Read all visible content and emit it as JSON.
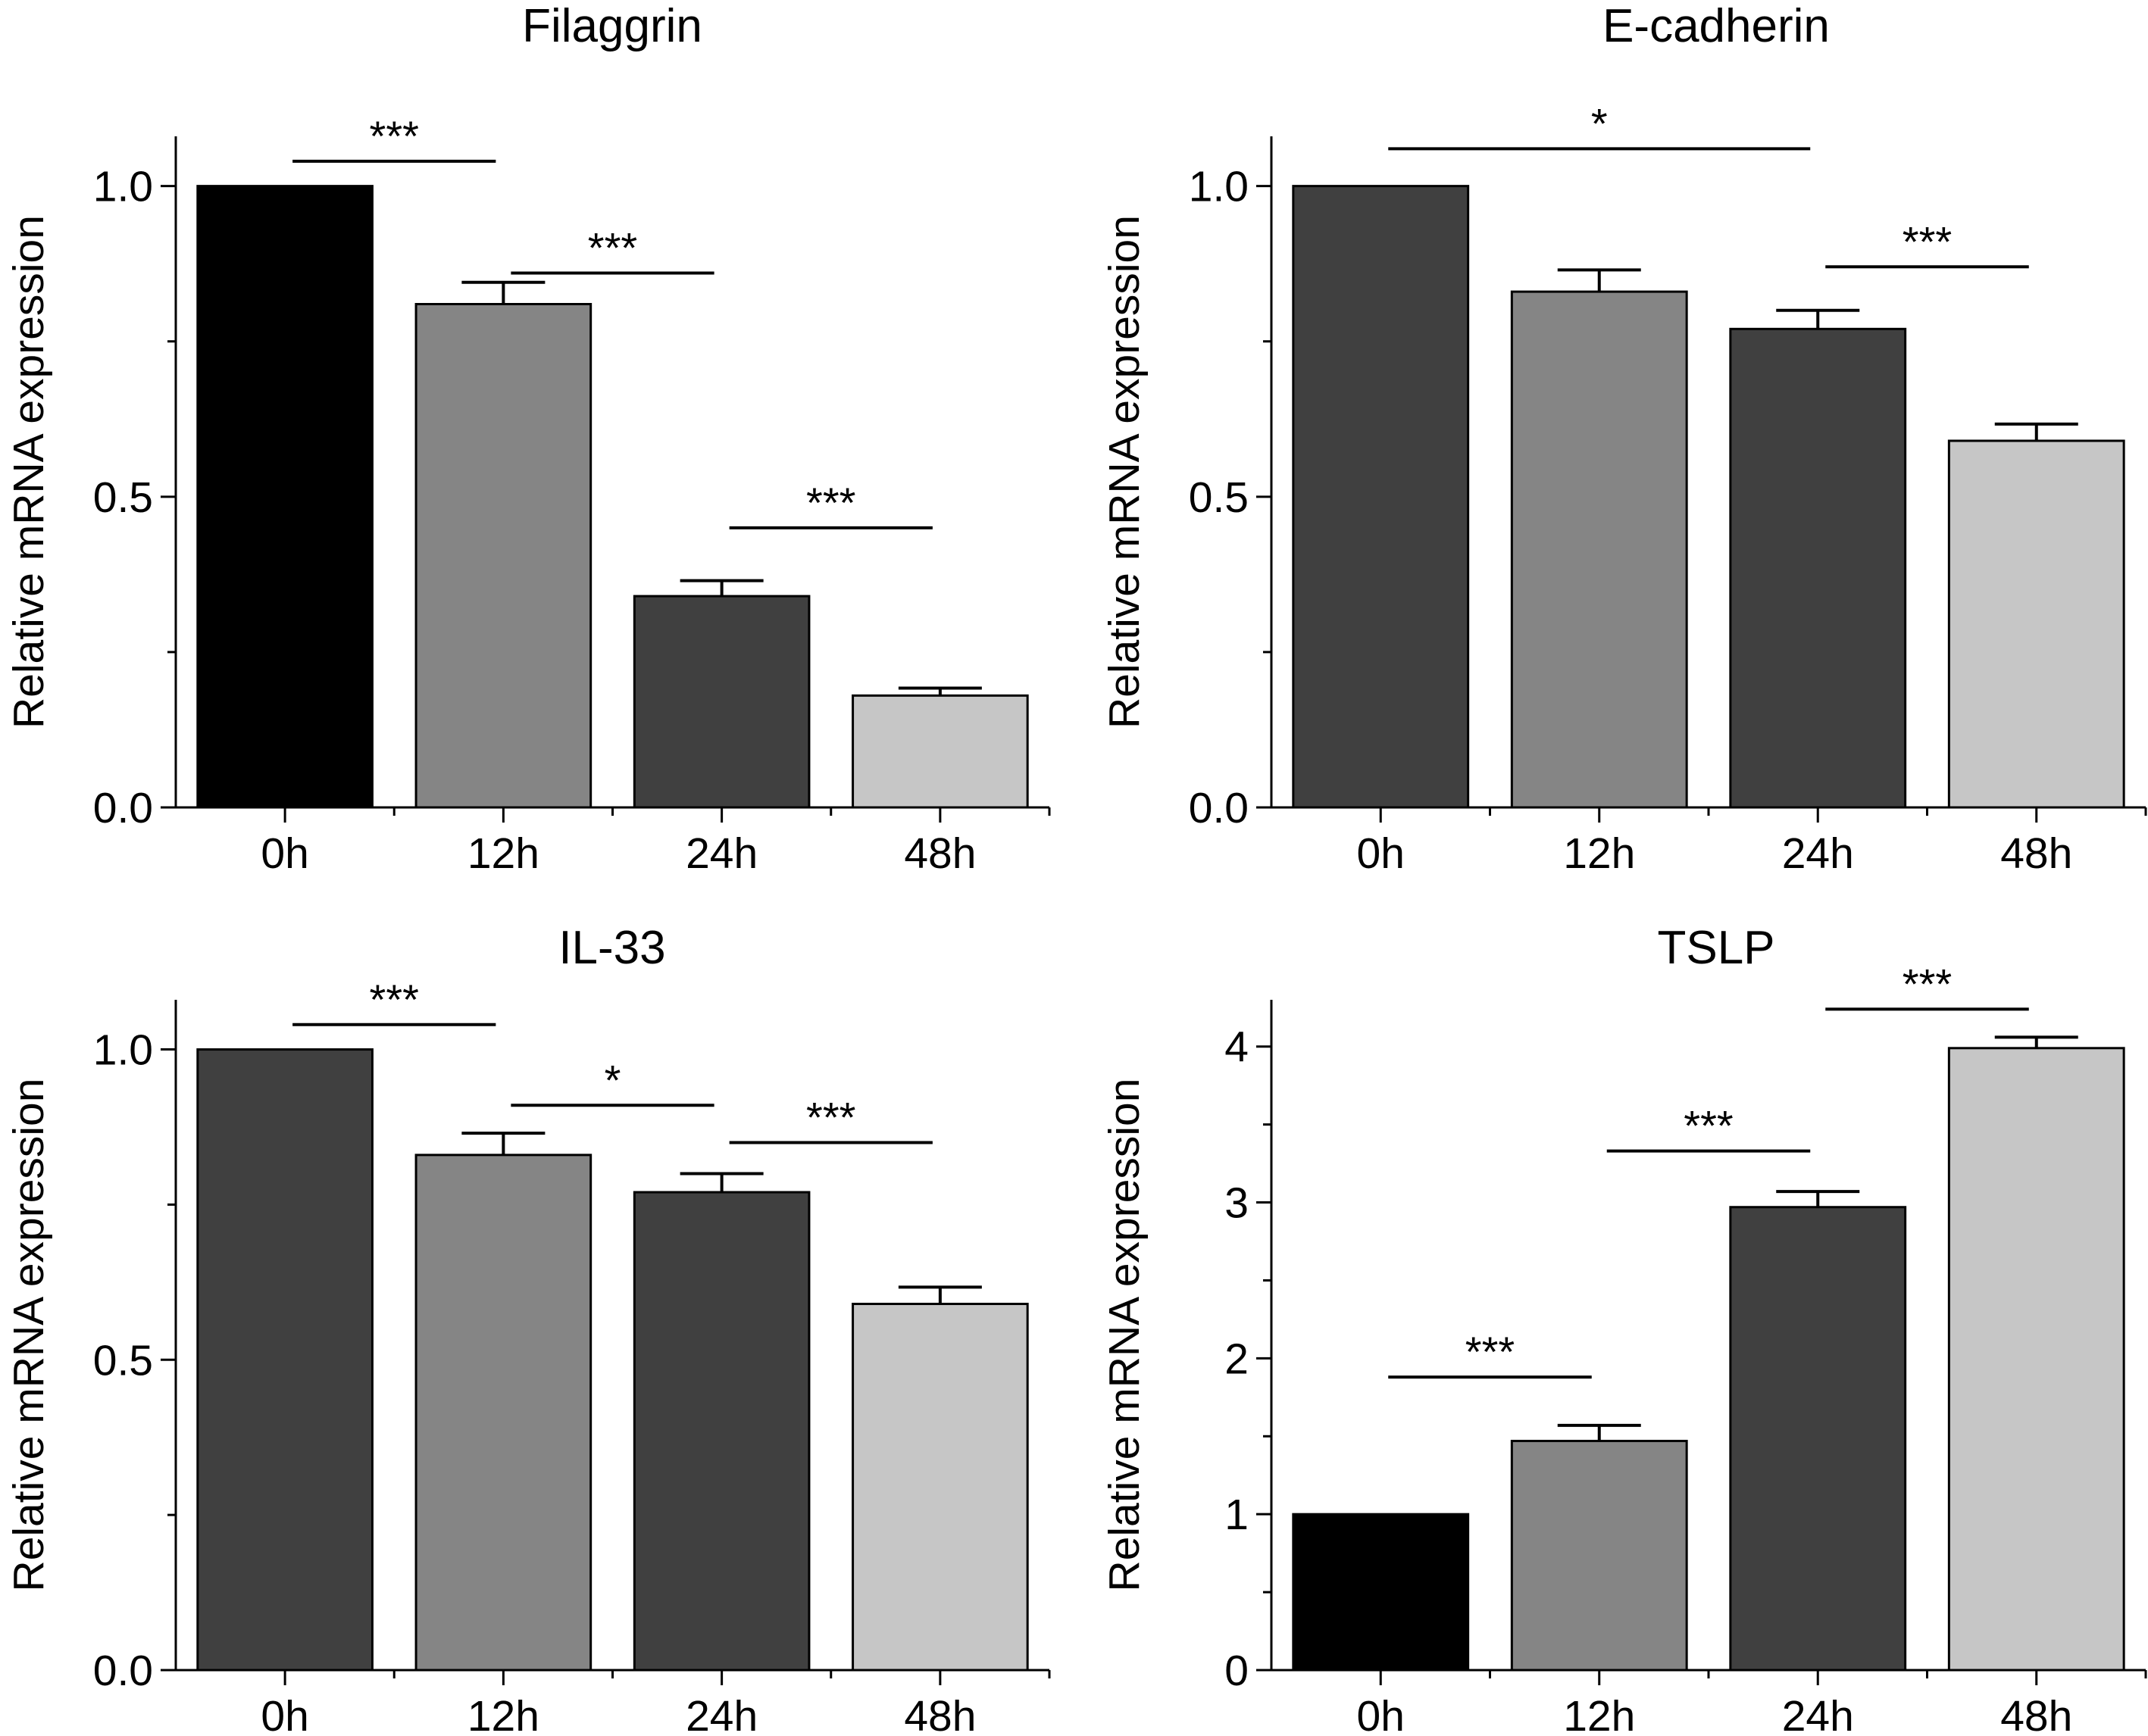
{
  "chart_data": [
    {
      "type": "bar",
      "title": "Filaggrin",
      "ylabel": "Relative mRNA expression",
      "xlabel": "",
      "categories": [
        "0h",
        "12h",
        "24h",
        "48h"
      ],
      "values": [
        1.0,
        0.81,
        0.34,
        0.18
      ],
      "errors": [
        0,
        0.035,
        0.025,
        0.012
      ],
      "colors": [
        "#000000",
        "#858585",
        "#404040",
        "#c6c6c6"
      ],
      "ylim": [
        0,
        1.08
      ],
      "yticks": [
        0.0,
        0.5,
        1.0
      ],
      "ytick_labels": [
        "0.0",
        "0.5",
        "1.0"
      ],
      "minor_ticks": [
        0.25,
        0.75
      ],
      "significance": [
        {
          "from": 0,
          "to": 1,
          "y": 1.04,
          "label": "***"
        },
        {
          "from": 1,
          "to": 2,
          "y": 0.86,
          "label": "***"
        },
        {
          "from": 2,
          "to": 3,
          "y": 0.45,
          "label": "***"
        }
      ]
    },
    {
      "type": "bar",
      "title": "E-cadherin",
      "ylabel": "Relative mRNA expression",
      "xlabel": "",
      "categories": [
        "0h",
        "12h",
        "24h",
        "48h"
      ],
      "values": [
        1.0,
        0.83,
        0.77,
        0.59
      ],
      "errors": [
        0,
        0.035,
        0.03,
        0.027
      ],
      "colors": [
        "#404040",
        "#858585",
        "#404040",
        "#c6c6c6"
      ],
      "ylim": [
        0,
        1.08
      ],
      "yticks": [
        0.0,
        0.5,
        1.0
      ],
      "ytick_labels": [
        "0.0",
        "0.5",
        "1.0"
      ],
      "minor_ticks": [
        0.25,
        0.75
      ],
      "significance": [
        {
          "from": 0,
          "to": 2,
          "y": 1.06,
          "label": "*"
        },
        {
          "from": 2,
          "to": 3,
          "y": 0.87,
          "label": "***"
        }
      ]
    },
    {
      "type": "bar",
      "title": "IL-33",
      "ylabel": "Relative mRNA expression",
      "xlabel": "",
      "categories": [
        "0h",
        "12h",
        "24h",
        "48h"
      ],
      "values": [
        1.0,
        0.83,
        0.77,
        0.59
      ],
      "errors": [
        0,
        0.035,
        0.03,
        0.027
      ],
      "colors": [
        "#404040",
        "#858585",
        "#404040",
        "#c6c6c6"
      ],
      "ylim": [
        0,
        1.08
      ],
      "yticks": [
        0.0,
        0.5,
        1.0
      ],
      "ytick_labels": [
        "0.0",
        "0.5",
        "1.0"
      ],
      "minor_ticks": [
        0.25,
        0.75
      ],
      "significance": [
        {
          "from": 0,
          "to": 1,
          "y": 1.04,
          "label": "***"
        },
        {
          "from": 1,
          "to": 2,
          "y": 0.91,
          "label": "*"
        },
        {
          "from": 2,
          "to": 3,
          "y": 0.85,
          "label": "***"
        }
      ]
    },
    {
      "type": "bar",
      "title": "TSLP",
      "ylabel": "Relative mRNA expression",
      "xlabel": "",
      "categories": [
        "0h",
        "12h",
        "24h",
        "48h"
      ],
      "values": [
        1.0,
        1.47,
        2.97,
        3.99
      ],
      "errors": [
        0,
        0.1,
        0.1,
        0.07
      ],
      "colors": [
        "#000000",
        "#858585",
        "#404040",
        "#c6c6c6"
      ],
      "ylim": [
        0,
        4.3
      ],
      "yticks": [
        0,
        1,
        2,
        3,
        4
      ],
      "ytick_labels": [
        "0",
        "1",
        "2",
        "3",
        "4"
      ],
      "minor_ticks": [
        0.5,
        1.5,
        2.5,
        3.5
      ],
      "significance": [
        {
          "from": 0,
          "to": 1,
          "y": 1.88,
          "label": "***"
        },
        {
          "from": 1,
          "to": 2,
          "y": 3.33,
          "label": "***"
        },
        {
          "from": 2,
          "to": 3,
          "y": 4.24,
          "label": "***"
        }
      ]
    }
  ]
}
